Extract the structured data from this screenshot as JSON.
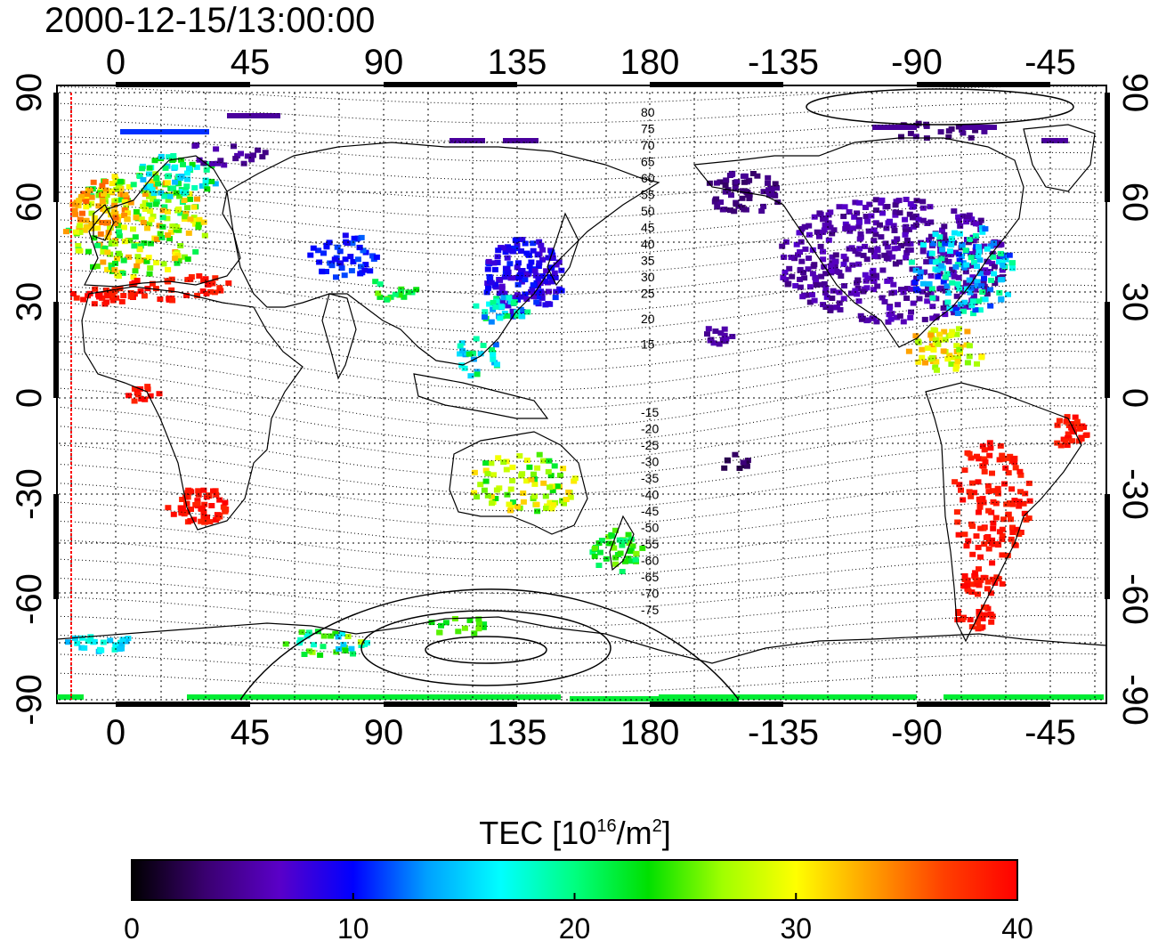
{
  "title": "2000-12-15/13:00:00",
  "map": {
    "lon_ticks": [
      "0",
      "45",
      "90",
      "135",
      "180",
      "-135",
      "-90",
      "-45"
    ],
    "lat_ticks": [
      "90",
      "60",
      "30",
      "0",
      "-30",
      "-60",
      "-90"
    ],
    "contour_labels_north": [
      "80",
      "75",
      "70",
      "65",
      "60",
      "55",
      "50",
      "45",
      "40",
      "35",
      "30",
      "25",
      "20",
      "15"
    ],
    "contour_labels_south": [
      "-15",
      "-20",
      "-25",
      "-30",
      "-35",
      "-40",
      "-45",
      "-50",
      "-55",
      "-60",
      "-65",
      "-70",
      "-75"
    ],
    "grid": "dotted",
    "coastlines": true
  },
  "colorbar": {
    "label_main": "TEC  [10",
    "label_exp": "16",
    "label_mid": "/m",
    "label_exp2": "2",
    "label_end": "]",
    "ticks": [
      "0",
      "10",
      "20",
      "30",
      "40"
    ],
    "stops": [
      "#000000",
      "#3a0070",
      "#5a00c8",
      "#0000ff",
      "#00a0ff",
      "#00ffff",
      "#00ff80",
      "#00e000",
      "#a0ff00",
      "#ffff00",
      "#ffa000",
      "#ff4000",
      "#ff0000"
    ]
  }
}
